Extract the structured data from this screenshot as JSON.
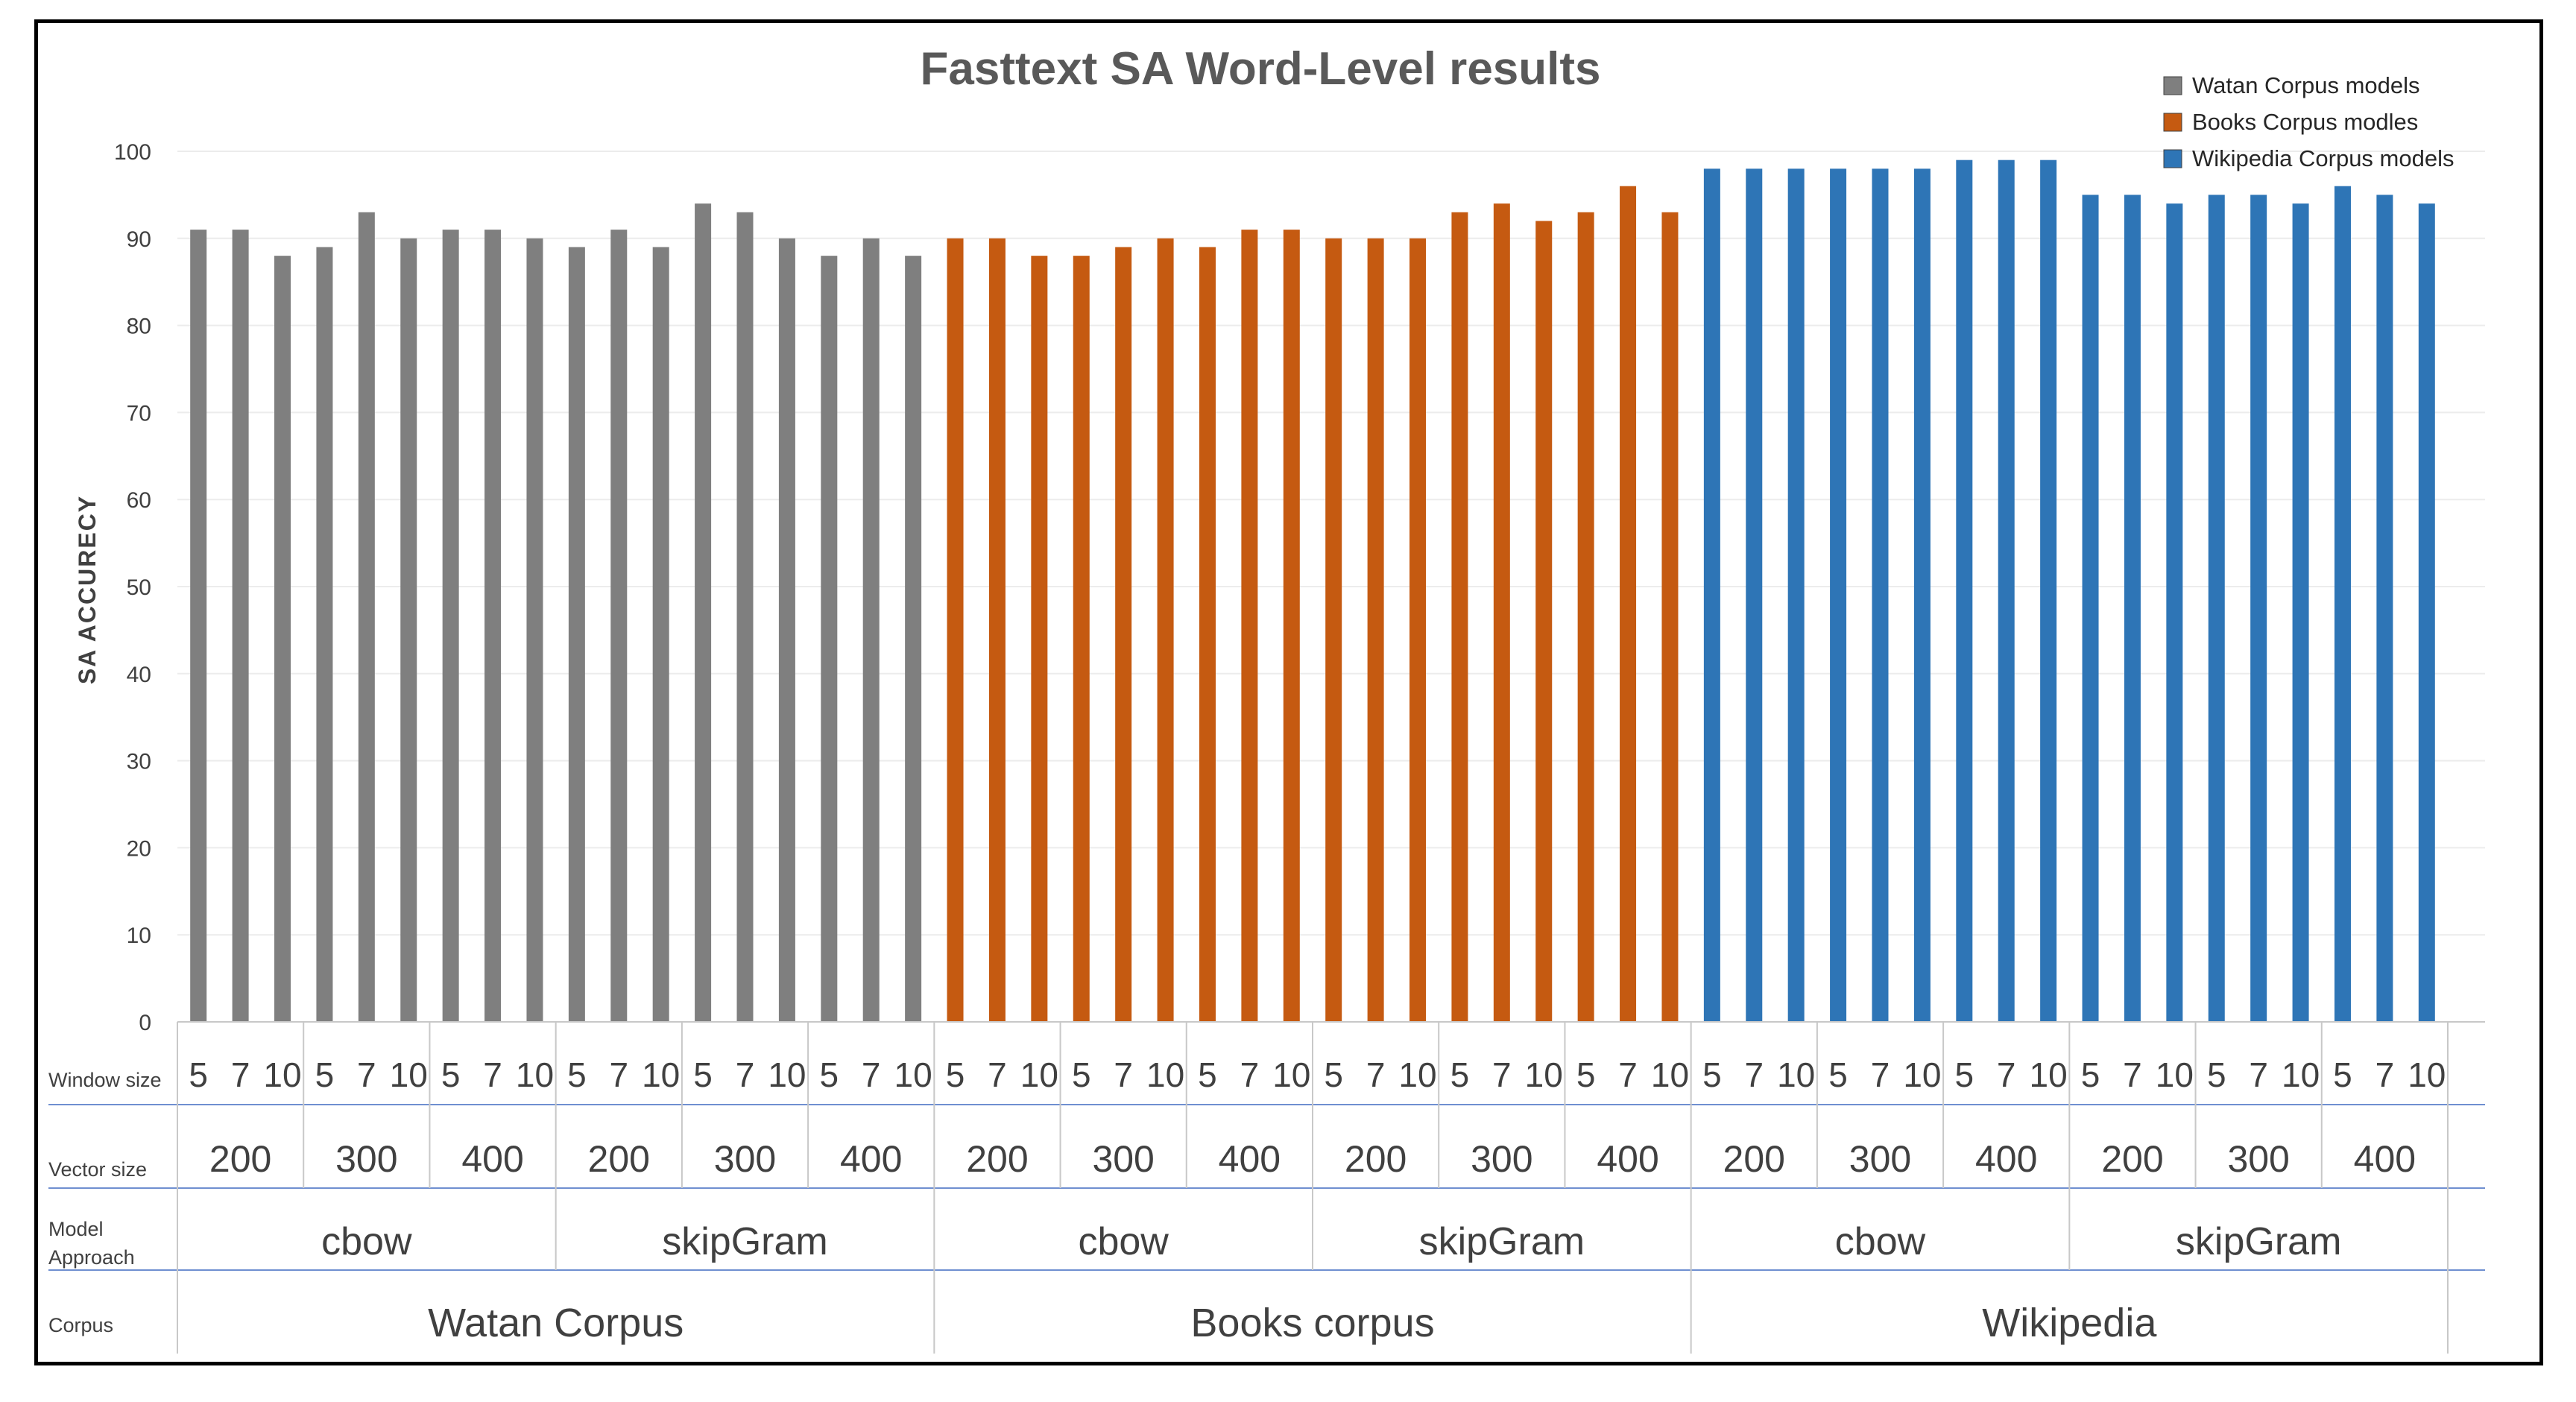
{
  "chart_data": {
    "type": "bar",
    "title": "Fasttext SA Word-Level results",
    "ylabel": "SA ACCURECY",
    "ylim": [
      0,
      100
    ],
    "yticks": [
      0,
      10,
      20,
      30,
      40,
      50,
      60,
      70,
      80,
      90,
      100
    ],
    "grid": true,
    "legend_position": "top-right",
    "row_labels": {
      "window": "Window size",
      "vector": "Vector size",
      "model": [
        "Model",
        "Approach"
      ],
      "corpus": "Corpus"
    },
    "window_sizes": [
      "5",
      "7",
      "10"
    ],
    "vector_sizes": [
      "200",
      "300",
      "400"
    ],
    "model_approaches": [
      "cbow",
      "skipGram"
    ],
    "series": [
      {
        "name": "Watan Corpus models",
        "corpus_label": "Watan Corpus",
        "color": "#7f7f7f",
        "values": [
          91,
          91,
          88,
          89,
          93,
          90,
          91,
          91,
          90,
          89,
          91,
          89,
          94,
          93,
          90,
          88,
          90,
          88
        ]
      },
      {
        "name": "Books Corpus modles",
        "corpus_label": "Books corpus",
        "color": "#c55a11",
        "values": [
          90,
          90,
          88,
          88,
          89,
          90,
          89,
          91,
          91,
          90,
          90,
          90,
          93,
          94,
          92,
          93,
          96,
          93
        ]
      },
      {
        "name": "Wikipedia Corpus models",
        "corpus_label": "Wikipedia",
        "color": "#2e75b6",
        "values": [
          98,
          98,
          98,
          98,
          98,
          98,
          99,
          99,
          99,
          95,
          95,
          94,
          95,
          95,
          94,
          96,
          95,
          94
        ]
      }
    ]
  }
}
